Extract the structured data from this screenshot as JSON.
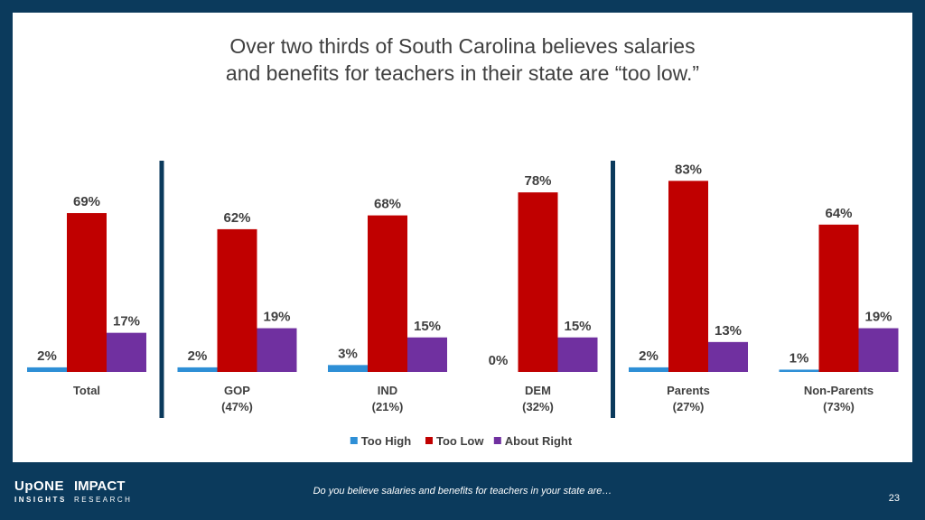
{
  "title_lines": [
    "Over two thirds of South Carolina believes salaries",
    "and benefits for teachers in their state are “too low.”"
  ],
  "footer": {
    "question": "Do you believe salaries and benefits for teachers in your state are…",
    "page_number": "23"
  },
  "logos": {
    "upone": {
      "main": "UpONE",
      "sub": "INSIGHTS"
    },
    "impact": {
      "main": "IMPACT",
      "sub": "RESEARCH"
    }
  },
  "chart_data": {
    "type": "bar",
    "categories": [
      {
        "label": "Total",
        "sublabel": ""
      },
      {
        "label": "GOP",
        "sublabel": "(47%)"
      },
      {
        "label": "IND",
        "sublabel": "(21%)"
      },
      {
        "label": "DEM",
        "sublabel": "(32%)"
      },
      {
        "label": "Parents",
        "sublabel": "(27%)"
      },
      {
        "label": "Non-Parents",
        "sublabel": "(73%)"
      }
    ],
    "series": [
      {
        "name": "Too High",
        "color": "#2e8fd6",
        "values": [
          2,
          2,
          3,
          0,
          2,
          1
        ]
      },
      {
        "name": "Too Low",
        "color": "#c00000",
        "values": [
          69,
          62,
          68,
          78,
          83,
          64
        ]
      },
      {
        "name": "About Right",
        "color": "#7030a0",
        "values": [
          17,
          19,
          15,
          15,
          13,
          19
        ]
      }
    ],
    "value_suffix": "%",
    "group_dividers_after": [
      "Total",
      "DEM"
    ],
    "legend_position": "bottom",
    "ylim": [
      0,
      100
    ],
    "grid": false
  }
}
